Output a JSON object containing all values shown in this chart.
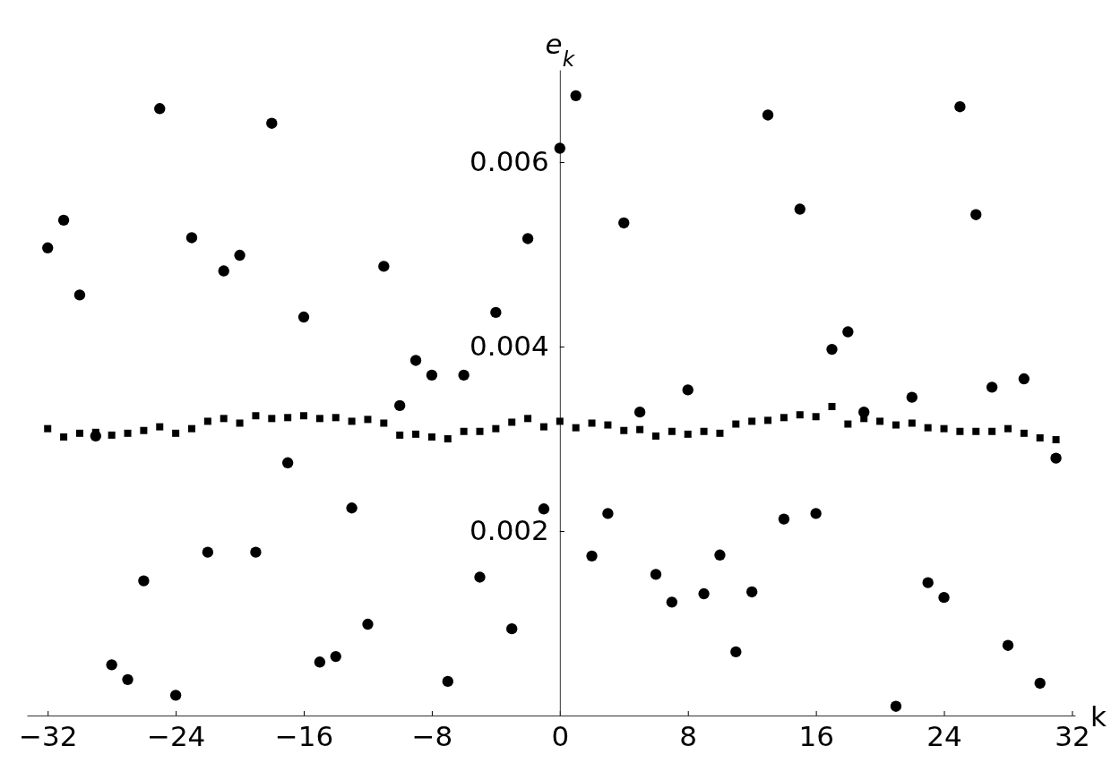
{
  "chart_data": {
    "type": "scatter",
    "xlabel": "k",
    "ylabel": "e$_{k}$",
    "xlim": [
      -33.3,
      32.2
    ],
    "ylim": [
      0,
      0.007
    ],
    "xticks": [
      {
        "value": -32,
        "label": "−32"
      },
      {
        "value": -24,
        "label": "−24"
      },
      {
        "value": -16,
        "label": "−16"
      },
      {
        "value": -8,
        "label": "−8"
      },
      0,
      8,
      16,
      24,
      32
    ],
    "yticks": [
      0.002,
      0.004,
      0.006
    ],
    "grid": false,
    "x": [
      -32,
      -31,
      -30,
      -29,
      -28,
      -27,
      -26,
      -25,
      -24,
      -23,
      -22,
      -21,
      -20,
      -19,
      -18,
      -17,
      -16,
      -15,
      -14,
      -13,
      -12,
      -11,
      -10,
      -9,
      -8,
      -7,
      -6,
      -5,
      -4,
      -3,
      -2,
      -1,
      0,
      1,
      2,
      3,
      4,
      5,
      6,
      7,
      8,
      9,
      10,
      11,
      12,
      13,
      14,
      15,
      16,
      17,
      18,
      19,
      20,
      21,
      22,
      23,
      24,
      25,
      26,
      27,
      28,
      29,
      30,
      31
    ],
    "series": [
      {
        "color": "#000000",
        "marker": "circle",
        "values": [
          0.00507,
          0.00537,
          0.00456,
          0.00303,
          0.00055,
          0.00039,
          0.00146,
          0.00658,
          0.00022,
          0.00518,
          0.00177,
          0.00482,
          0.00499,
          0.00177,
          0.00642,
          0.00274,
          0.00432,
          0.00058,
          0.00064,
          0.00225,
          0.00099,
          0.00487,
          0.00336,
          0.00385,
          0.00369,
          0.00037,
          0.00369,
          0.0015,
          0.00437,
          0.00094,
          0.00517,
          0.00224,
          0.00615,
          0.00672,
          0.00173,
          0.00219,
          0.00534,
          0.00329,
          0.00153,
          0.00123,
          0.00353,
          0.00132,
          0.00174,
          0.00069,
          0.00134,
          0.00651,
          0.00213,
          0.00549,
          0.00219,
          0.00397,
          0.00416,
          0.00329,
          null,
          0.0001,
          0.00345,
          0.00144,
          0.00128,
          0.0066,
          0.00543,
          0.00356,
          0.00076,
          0.00365,
          0.00035,
          0.00279
        ]
      },
      {
        "color": "#000000",
        "marker": "square",
        "values": [
          0.00311,
          0.00302,
          0.00306,
          0.00307,
          0.00304,
          0.00306,
          0.00309,
          0.00313,
          0.00306,
          0.00311,
          0.00319,
          0.00322,
          0.00317,
          0.00325,
          0.00322,
          0.00323,
          0.00325,
          0.00322,
          0.00323,
          0.00319,
          0.00321,
          0.00317,
          0.00304,
          0.00305,
          0.00302,
          0.003,
          0.00308,
          0.00308,
          0.00311,
          0.00318,
          0.00322,
          0.00313,
          0.00319,
          0.00312,
          0.00317,
          0.00315,
          0.00309,
          0.0031,
          0.00303,
          0.00308,
          0.00305,
          0.00308,
          0.00306,
          0.00316,
          0.00319,
          0.0032,
          0.00323,
          0.00326,
          0.00324,
          0.00335,
          0.00316,
          0.00322,
          0.00319,
          0.00315,
          0.00317,
          0.00312,
          0.00311,
          0.00308,
          0.00308,
          0.00308,
          0.00311,
          0.00306,
          0.00301,
          0.00299
        ]
      }
    ]
  }
}
